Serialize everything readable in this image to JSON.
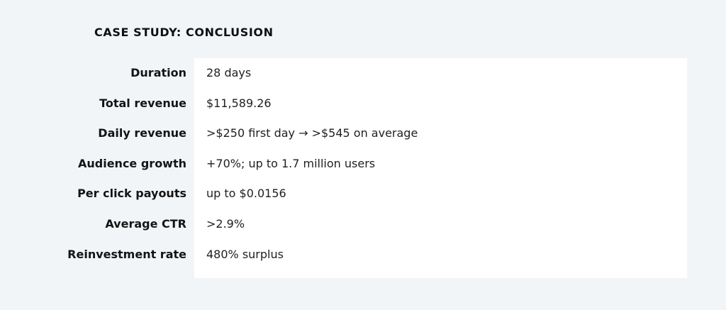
{
  "heading": "CASE STUDY: CONCLUSION",
  "rows": [
    {
      "label": "Duration",
      "value": "28 days"
    },
    {
      "label": "Total revenue",
      "value": "$11,589.26"
    },
    {
      "label": "Daily revenue",
      "value": ">$250 first day → >$545 on average"
    },
    {
      "label": "Audience growth",
      "value": "+70%; up to 1.7 million users"
    },
    {
      "label": "Per click payouts",
      "value": "up to $0.0156"
    },
    {
      "label": "Average CTR",
      "value": ">2.9%"
    },
    {
      "label": "Reinvestment rate",
      "value": "480% surplus"
    }
  ]
}
